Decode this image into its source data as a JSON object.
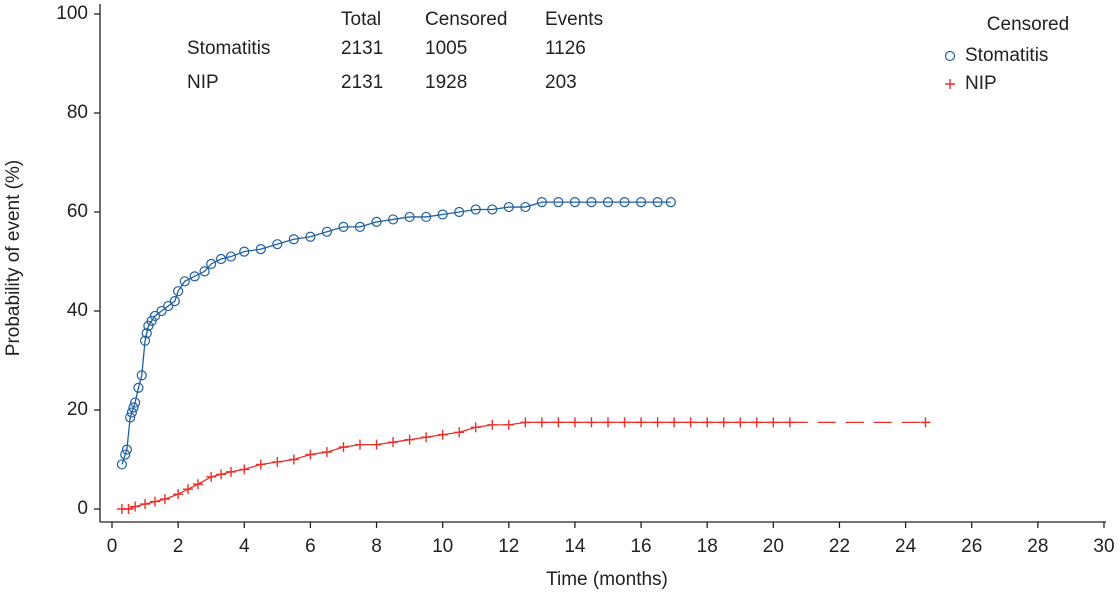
{
  "chart_data": {
    "type": "line",
    "xlabel": "Time (months)",
    "ylabel": "Probability of event (%)",
    "xlim": [
      0,
      30
    ],
    "xticks": [
      0,
      2,
      4,
      6,
      8,
      10,
      12,
      14,
      16,
      18,
      20,
      22,
      24,
      26,
      28,
      30
    ],
    "ylim": [
      0,
      100
    ],
    "yticks": [
      0,
      20,
      40,
      60,
      80,
      100
    ],
    "legend_title": "Censored",
    "legend_position": "upper right",
    "table": {
      "columns": [
        "Total",
        "Censored",
        "Events"
      ],
      "rows": [
        {
          "label": "Stomatitis",
          "values": [
            "2131",
            "1005",
            "1126"
          ]
        },
        {
          "label": "NIP",
          "values": [
            "2131",
            "1928",
            "203"
          ]
        }
      ]
    },
    "series": [
      {
        "name": "Stomatitis",
        "color": "#1f5fa0",
        "marker": "circle",
        "x": [
          0.3,
          0.4,
          0.45,
          0.55,
          0.6,
          0.65,
          0.7,
          0.8,
          0.9,
          1.0,
          1.05,
          1.1,
          1.2,
          1.3,
          1.5,
          1.7,
          1.9,
          2.0,
          2.2,
          2.5,
          2.8,
          3.0,
          3.3,
          3.6,
          4.0,
          4.5,
          5.0,
          5.5,
          6.0,
          6.5,
          7.0,
          7.5,
          8.0,
          8.5,
          9.0,
          9.5,
          10.0,
          10.5,
          11.0,
          11.5,
          12.0,
          12.5,
          13.0,
          13.5,
          14.0,
          14.5,
          15.0,
          15.5,
          16.0,
          16.5,
          16.9
        ],
        "values": [
          9,
          11,
          12,
          18.5,
          19.5,
          20.5,
          21.5,
          24.5,
          27,
          34,
          35.5,
          37,
          38,
          39,
          40,
          41,
          42,
          44,
          46,
          47,
          48,
          49.5,
          50.5,
          51,
          52,
          52.5,
          53.5,
          54.5,
          55,
          56,
          57,
          57,
          58,
          58.5,
          59,
          59,
          59.5,
          60,
          60.5,
          60.5,
          61,
          61,
          62,
          62,
          62,
          62,
          62,
          62,
          62,
          62,
          62
        ]
      },
      {
        "name": "NIP",
        "color": "#e8312a",
        "marker": "plus",
        "tail_style": "dashed",
        "x": [
          0.3,
          0.5,
          0.7,
          1.0,
          1.3,
          1.6,
          2.0,
          2.3,
          2.6,
          3.0,
          3.3,
          3.6,
          4.0,
          4.5,
          5.0,
          5.5,
          6.0,
          6.5,
          7.0,
          7.5,
          8.0,
          8.5,
          9.0,
          9.5,
          10.0,
          10.5,
          11.0,
          11.5,
          12.0,
          12.5,
          13.0,
          13.5,
          14.0,
          14.5,
          15.0,
          15.5,
          16.0,
          16.5,
          17.0,
          17.5,
          18.0,
          18.5,
          19.0,
          19.5,
          20.0,
          20.5,
          24.6
        ],
        "values": [
          0,
          0,
          0.5,
          1,
          1.5,
          2,
          3,
          4,
          5,
          6.5,
          7,
          7.5,
          8,
          9,
          9.5,
          10,
          11,
          11.5,
          12.5,
          13,
          13,
          13.5,
          14,
          14.5,
          15,
          15.5,
          16.5,
          17,
          17,
          17.5,
          17.5,
          17.5,
          17.5,
          17.5,
          17.5,
          17.5,
          17.5,
          17.5,
          17.5,
          17.5,
          17.5,
          17.5,
          17.5,
          17.5,
          17.5,
          17.5,
          17.5
        ]
      }
    ]
  }
}
